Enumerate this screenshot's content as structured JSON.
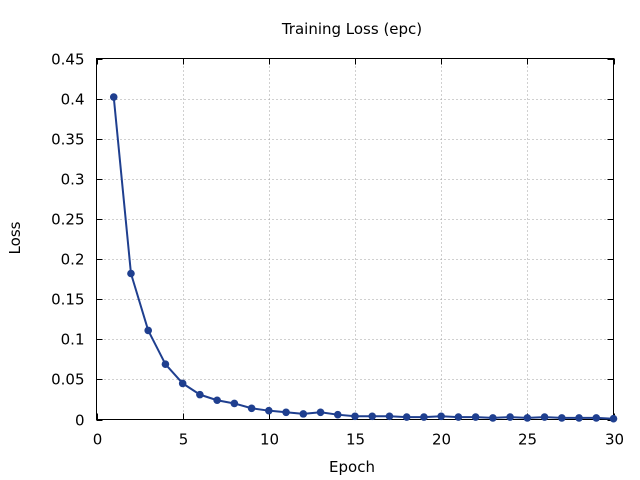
{
  "chart_data": {
    "type": "line",
    "title": "Training Loss (epc)",
    "xlabel": "Epoch",
    "ylabel": "Loss",
    "xlim": [
      0,
      30
    ],
    "ylim": [
      0,
      0.45
    ],
    "grid": true,
    "x_ticks": [
      0,
      5,
      10,
      15,
      20,
      25,
      30
    ],
    "x_tick_labels": [
      "0",
      "5",
      "10",
      "15",
      "20",
      "25",
      "30"
    ],
    "y_ticks": [
      0,
      0.05,
      0.1,
      0.15,
      0.2,
      0.25,
      0.3,
      0.35,
      0.4,
      0.45
    ],
    "y_tick_labels": [
      "0",
      "0.05",
      "0.1",
      "0.15",
      "0.2",
      "0.25",
      "0.3",
      "0.35",
      "0.4",
      "0.45"
    ],
    "series": [
      {
        "color": "#1f3f8f",
        "x": [
          1,
          2,
          3,
          4,
          5,
          6,
          7,
          8,
          9,
          10,
          11,
          12,
          13,
          14,
          15,
          16,
          17,
          18,
          19,
          20,
          21,
          22,
          23,
          24,
          25,
          26,
          27,
          28,
          29,
          30
        ],
        "values": [
          0.402,
          0.182,
          0.111,
          0.069,
          0.045,
          0.031,
          0.024,
          0.02,
          0.014,
          0.011,
          0.009,
          0.007,
          0.009,
          0.006,
          0.004,
          0.004,
          0.004,
          0.003,
          0.003,
          0.004,
          0.003,
          0.003,
          0.002,
          0.003,
          0.002,
          0.003,
          0.002,
          0.002,
          0.002,
          0.001
        ]
      }
    ]
  }
}
